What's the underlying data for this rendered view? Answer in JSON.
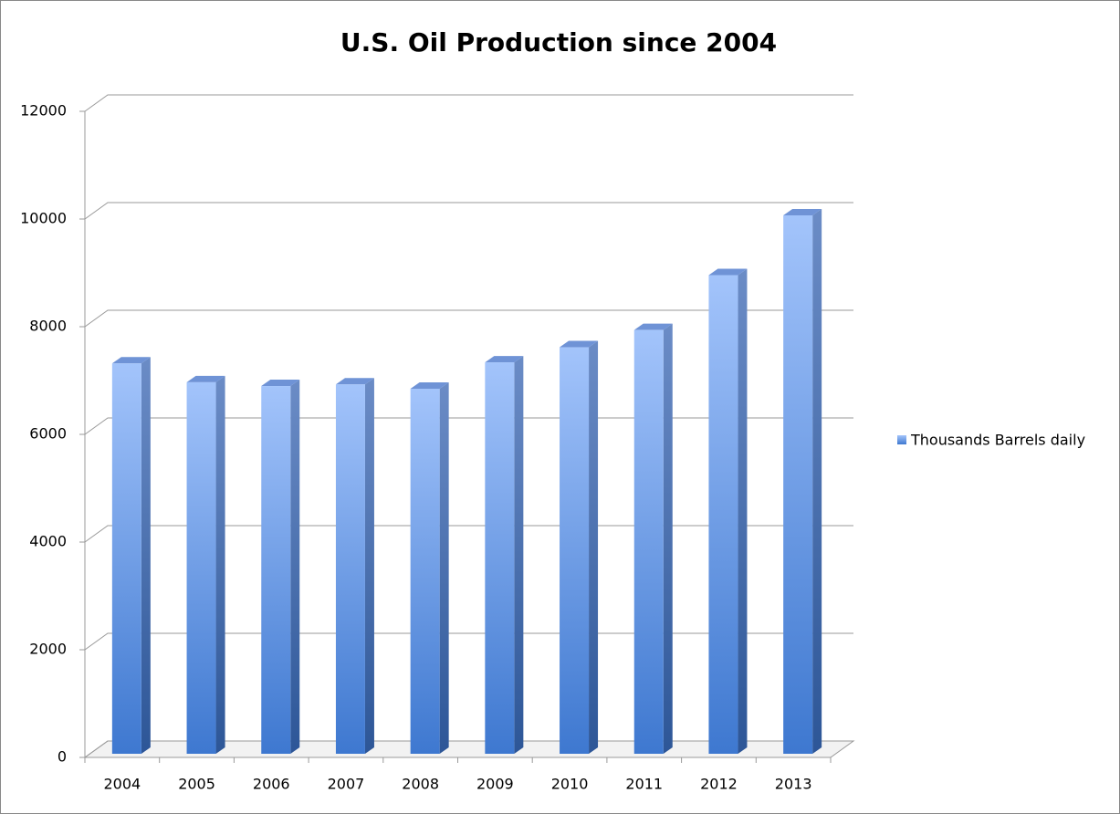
{
  "chart_data": {
    "type": "bar3d",
    "title": "U.S. Oil Production since 2004",
    "categories": [
      "2004",
      "2005",
      "2006",
      "2007",
      "2008",
      "2009",
      "2010",
      "2011",
      "2012",
      "2013"
    ],
    "series": [
      {
        "name": "Thousands Barrels daily",
        "color": "#4a7fd4",
        "values": [
          7250,
          6900,
          6830,
          6860,
          6780,
          7270,
          7550,
          7870,
          8890,
          10000
        ]
      }
    ],
    "ylim": [
      0,
      12000
    ],
    "yticks": [
      0,
      2000,
      4000,
      6000,
      8000,
      10000,
      12000
    ],
    "grid": true,
    "legend": "right"
  }
}
